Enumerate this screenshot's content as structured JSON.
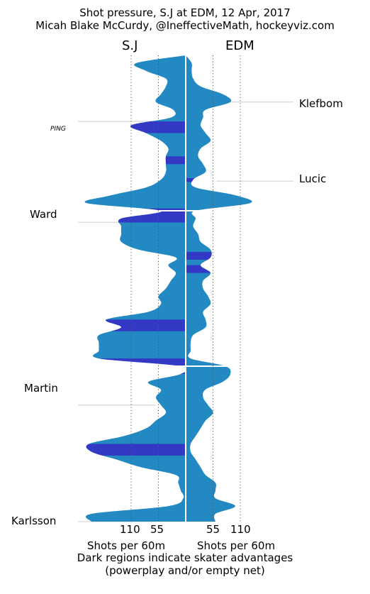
{
  "title_line1": "Shot pressure, S.J at EDM, 12 Apr, 2017",
  "title_line2": "Micah Blake McCurdy, @IneffectiveMath, hockeyviz.com",
  "footnote_line1": "Dark regions indicate skater advantages",
  "footnote_line2": "(powerplay and/or empty net)",
  "colors": {
    "even": "#2389c2",
    "advantage": "#3338c5",
    "guide": "#dddddd"
  },
  "chart_data": {
    "type": "area",
    "orientation": "vertical-mirrored",
    "title": "Shot pressure, S.J at EDM, 12 Apr, 2017",
    "teams": {
      "left": "S.J",
      "right": "EDM"
    },
    "xlabel_left": "Shots per 60m",
    "xlabel_right": "Shots per 60m",
    "xticks_left": [
      110,
      55
    ],
    "xticks_right": [
      55,
      110
    ],
    "xlim": [
      0,
      200
    ],
    "ylim_minutes": [
      0,
      60
    ],
    "gridlines": "dotted at 55 and 110",
    "period_breaks_minutes": [
      20,
      40
    ],
    "time_minutes": [
      0,
      1,
      2,
      3,
      4,
      5,
      6,
      7,
      8,
      9,
      10,
      11,
      12,
      13,
      14,
      15,
      16,
      17,
      18,
      19,
      20,
      21,
      22,
      23,
      24,
      25,
      26,
      27,
      28,
      29,
      30,
      31,
      32,
      33,
      34,
      35,
      36,
      37,
      38,
      39,
      40,
      41,
      42,
      43,
      44,
      45,
      46,
      47,
      48,
      49,
      50,
      51,
      52,
      53,
      54,
      55,
      56,
      57,
      58,
      59,
      60
    ],
    "sj_rate": [
      0,
      100,
      80,
      40,
      40,
      50,
      60,
      25,
      30,
      110,
      80,
      50,
      35,
      40,
      40,
      40,
      50,
      80,
      150,
      200,
      50,
      130,
      130,
      130,
      130,
      95,
      20,
      35,
      20,
      30,
      40,
      55,
      50,
      75,
      160,
      130,
      175,
      175,
      175,
      175,
      10,
      10,
      75,
      50,
      60,
      50,
      40,
      60,
      80,
      125,
      195,
      190,
      140,
      90,
      20,
      15,
      10,
      5,
      35,
      190,
      190
    ],
    "edm_rate": [
      0,
      12,
      12,
      15,
      30,
      75,
      90,
      40,
      35,
      30,
      40,
      50,
      30,
      25,
      35,
      40,
      15,
      20,
      100,
      130,
      20,
      20,
      15,
      25,
      30,
      50,
      50,
      30,
      50,
      35,
      35,
      45,
      50,
      35,
      40,
      40,
      15,
      10,
      10,
      10,
      80,
      90,
      75,
      40,
      35,
      45,
      55,
      40,
      30,
      20,
      10,
      10,
      20,
      30,
      40,
      60,
      60,
      60,
      100,
      60,
      60
    ],
    "sj_advantage_minutes": [
      [
        8.5,
        10.0
      ],
      [
        13.0,
        14.0
      ],
      [
        19.7,
        20.0
      ],
      [
        20.0,
        21.5
      ],
      [
        34.0,
        35.5
      ],
      [
        39.0,
        40.0
      ],
      [
        40.0,
        41.0
      ],
      [
        50.0,
        51.5
      ]
    ],
    "edm_advantage_minutes": [
      [
        15.8,
        16.3
      ],
      [
        25.3,
        26.3
      ],
      [
        27.0,
        28.0
      ]
    ],
    "player_annotations": [
      {
        "name": "PING",
        "side": "left",
        "minute": 8.5
      },
      {
        "name": "Klefbom",
        "side": "right",
        "minute": 6.0
      },
      {
        "name": "Lucic",
        "side": "right",
        "minute": 16.2
      },
      {
        "name": "Ward",
        "side": "left",
        "minute": 21.5
      },
      {
        "name": "Martin",
        "side": "left",
        "minute": 45.0
      },
      {
        "name": "Karlsson",
        "side": "left",
        "minute": 60.0
      }
    ]
  }
}
